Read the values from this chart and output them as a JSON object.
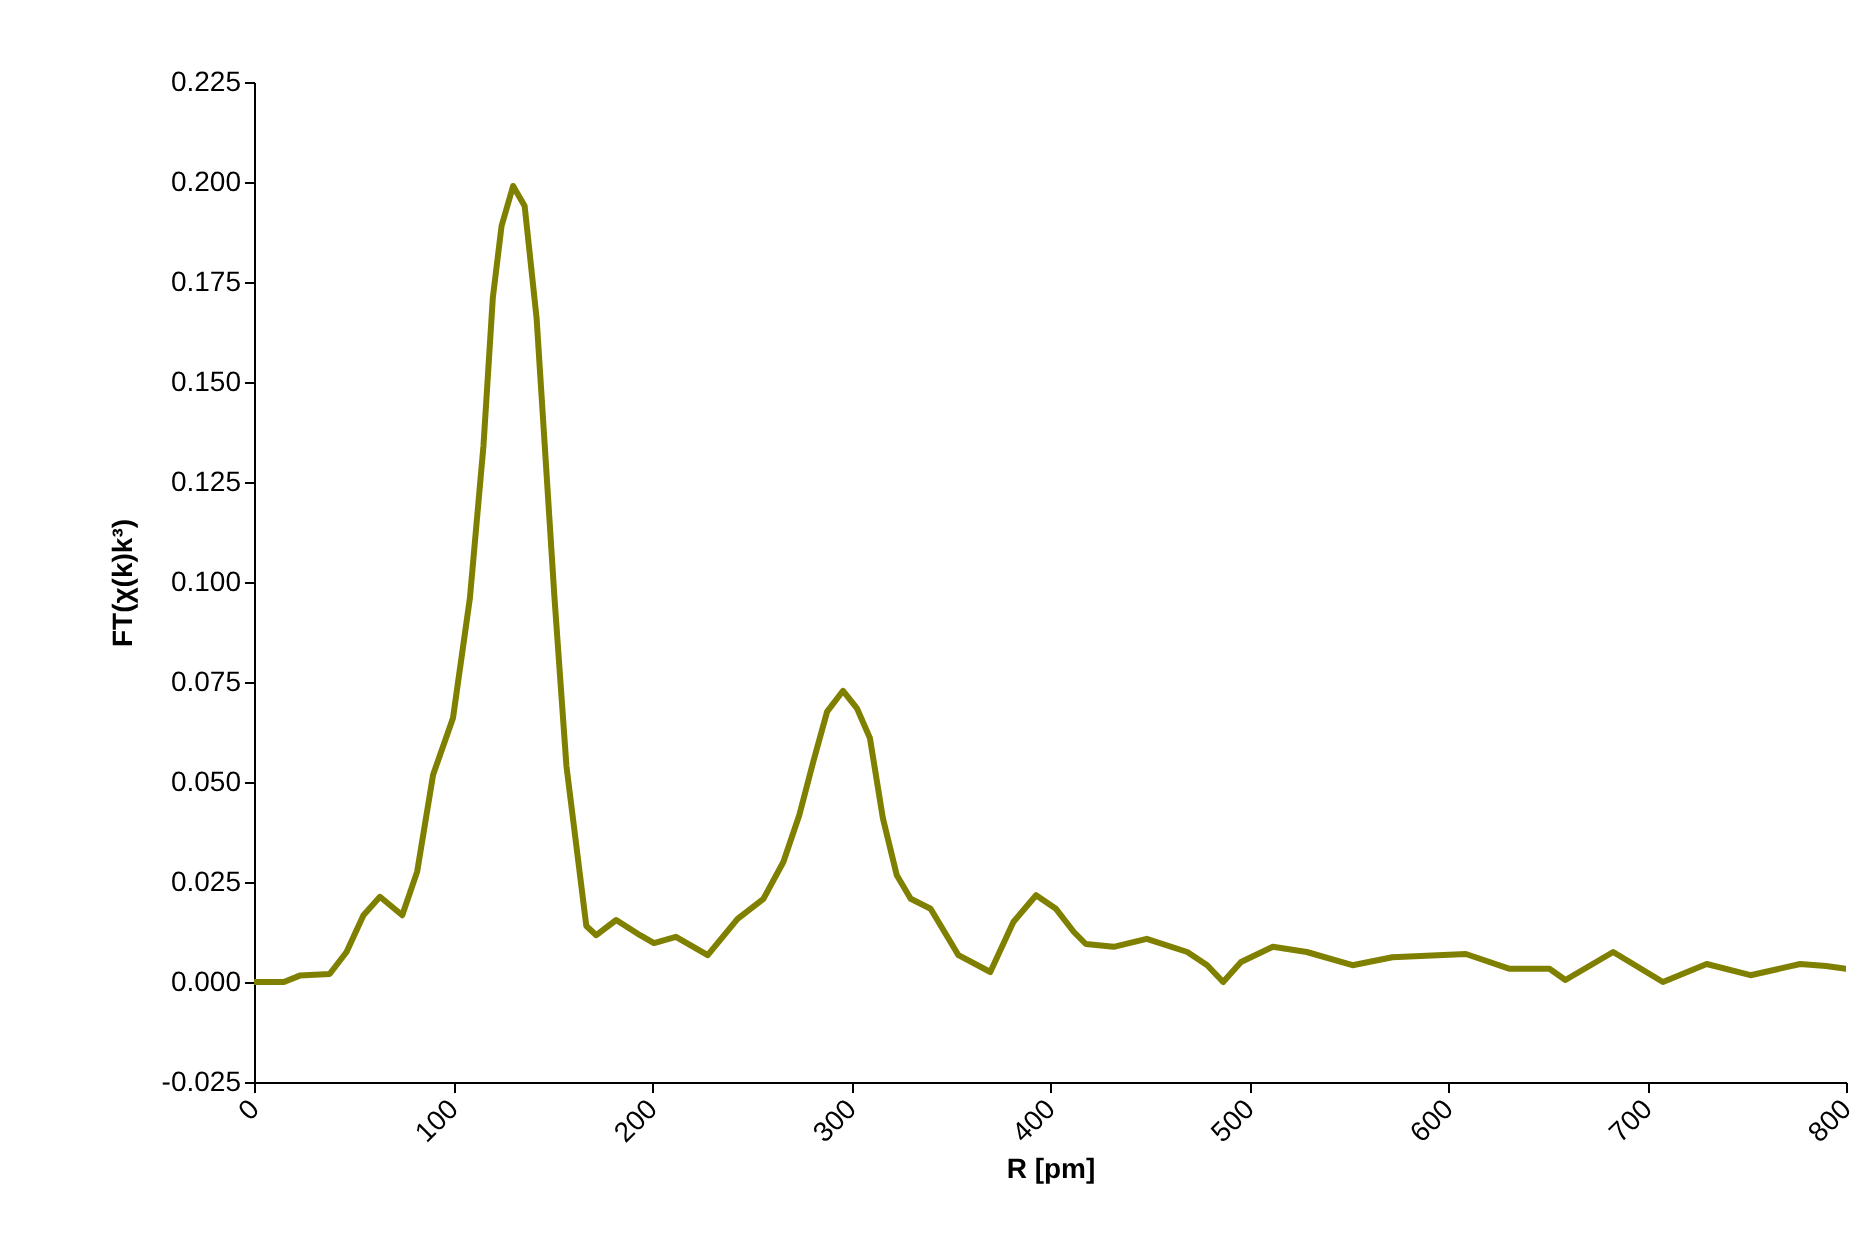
{
  "chart_data": {
    "type": "line",
    "xlabel": "R [pm]",
    "ylabel": "FT(χ(k)k³)",
    "x": [
      0,
      15,
      23,
      38,
      46.5,
      55,
      63.3,
      74.5,
      82,
      90,
      100,
      108.5,
      115.3,
      120,
      124.4,
      130.2,
      136,
      142,
      151,
      157,
      167,
      172,
      182,
      194,
      201,
      212,
      228,
      243,
      256,
      266,
      274,
      281,
      288,
      296,
      303,
      309.5,
      316,
      323,
      330,
      340,
      354,
      370,
      381.6,
      393,
      403,
      412,
      418,
      432,
      448.6,
      469,
      479,
      487,
      496,
      512,
      529,
      552,
      572,
      609,
      631,
      651,
      659,
      683,
      708,
      730,
      752,
      777,
      790,
      800
    ],
    "series": [
      {
        "color": "#808000",
        "values": [
          0,
          0,
          0.0016,
          0.002,
          0.0075,
          0.0167,
          0.0213,
          0.0167,
          0.0276,
          0.0518,
          0.066,
          0.096,
          0.134,
          0.171,
          0.189,
          0.199,
          0.194,
          0.166,
          0.096,
          0.054,
          0.014,
          0.0117,
          0.0155,
          0.0117,
          0.0097,
          0.0113,
          0.0067,
          0.0158,
          0.0208,
          0.03,
          0.0417,
          0.055,
          0.0676,
          0.0728,
          0.0684,
          0.061,
          0.041,
          0.0267,
          0.0208,
          0.0183,
          0.0067,
          0.0025,
          0.015,
          0.0217,
          0.0183,
          0.0125,
          0.0095,
          0.0088,
          0.0108,
          0.0075,
          0.0042,
          0,
          0.005,
          0.0088,
          0.0075,
          0.0042,
          0.0062,
          0.007,
          0.0033,
          0.0033,
          0.0005,
          0.0075,
          0,
          0.0045,
          0.0017,
          0.0045,
          0.004,
          0.0033
        ]
      }
    ],
    "xlim": [
      0,
      800
    ],
    "xticks": [
      0,
      100,
      200,
      300,
      400,
      500,
      600,
      700,
      800
    ],
    "ylim": [
      -0.025,
      0.225
    ],
    "yticks": [
      {
        "value": -0.025,
        "label": "-0.025"
      },
      {
        "value": 0,
        "label": "0.000"
      },
      {
        "value": 0.025,
        "label": "0.025"
      },
      {
        "value": 0.05,
        "label": "0.050"
      },
      {
        "value": 0.075,
        "label": "0.075"
      },
      {
        "value": 0.1,
        "label": "0.100"
      },
      {
        "value": 0.125,
        "label": "0.125"
      },
      {
        "value": 0.15,
        "label": "0.150"
      },
      {
        "value": 0.175,
        "label": "0.175"
      },
      {
        "value": 0.2,
        "label": "0.200"
      },
      {
        "value": 0.225,
        "label": "0.225"
      }
    ],
    "grid": false,
    "marker": "none",
    "line_style": "solid"
  }
}
